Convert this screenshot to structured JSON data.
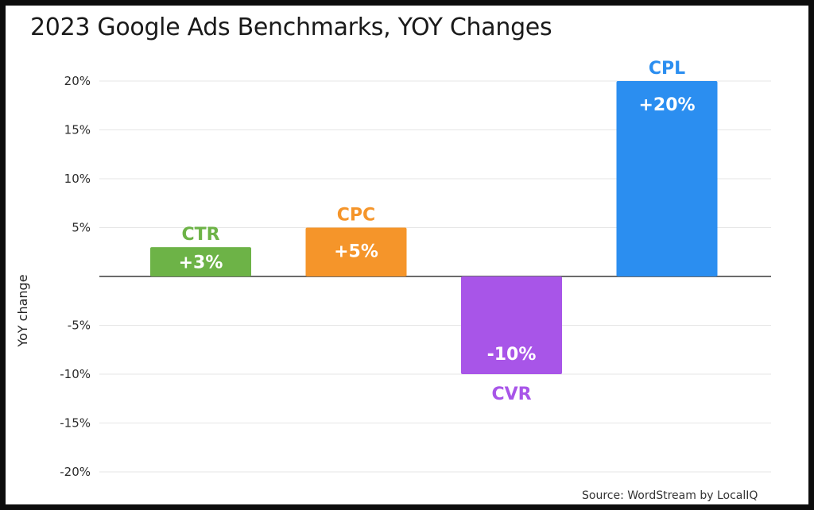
{
  "chart_data": {
    "type": "bar",
    "title": "2023 Google Ads Benchmarks, YOY Changes",
    "ylabel": "YoY change",
    "xlabel": "",
    "ylim": [
      -20,
      20
    ],
    "yticks": [
      20,
      15,
      10,
      5,
      0,
      -5,
      -10,
      -15,
      -20
    ],
    "ytick_labels": [
      "20%",
      "15%",
      "10%",
      "5%",
      "",
      "-5%",
      "-10%",
      "-15%",
      "-20%"
    ],
    "categories": [
      "CTR",
      "CPC",
      "CVR",
      "CPL"
    ],
    "values": [
      3,
      5,
      -10,
      20
    ],
    "data_labels": [
      "+3%",
      "+5%",
      "-10%",
      "+20%"
    ],
    "colors": [
      "#6db347",
      "#f5952a",
      "#a855e8",
      "#2b8ef0"
    ],
    "grid": true,
    "legend": "none"
  },
  "source": "Source: WordStream by LocalIQ"
}
